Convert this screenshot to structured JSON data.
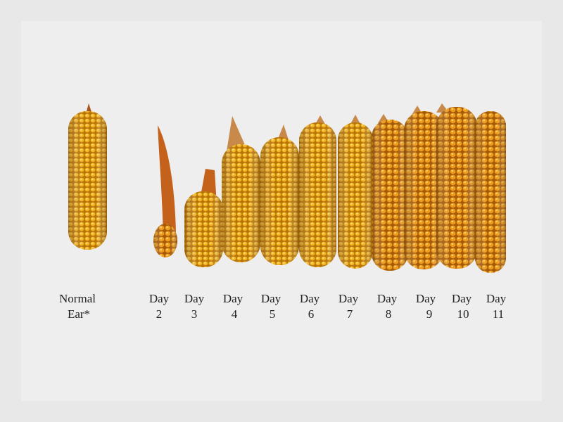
{
  "ears": [
    {
      "line1": "Normal",
      "line2": "Ear*"
    },
    {
      "line1": "Day",
      "line2": "2"
    },
    {
      "line1": "Day",
      "line2": "3"
    },
    {
      "line1": "Day",
      "line2": "4"
    },
    {
      "line1": "Day",
      "line2": "5"
    },
    {
      "line1": "Day",
      "line2": "6"
    },
    {
      "line1": "Day",
      "line2": "7"
    },
    {
      "line1": "Day",
      "line2": "8"
    },
    {
      "line1": "Day",
      "line2": "9"
    },
    {
      "line1": "Day",
      "line2": "10"
    },
    {
      "line1": "Day",
      "line2": "11"
    }
  ]
}
